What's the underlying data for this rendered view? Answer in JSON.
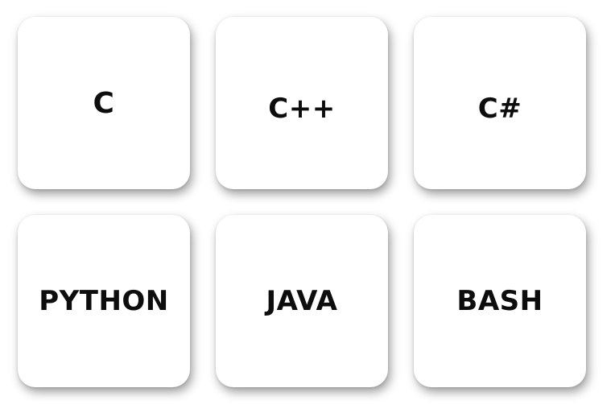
{
  "languages": [
    {
      "label": "C"
    },
    {
      "label": "C++"
    },
    {
      "label": "C#"
    },
    {
      "label": "PYTHON"
    },
    {
      "label": "JAVA"
    },
    {
      "label": "BASH"
    }
  ],
  "colors": {
    "background": "#ffffff",
    "card": "#ffffff",
    "text": "#0d0d0d"
  }
}
